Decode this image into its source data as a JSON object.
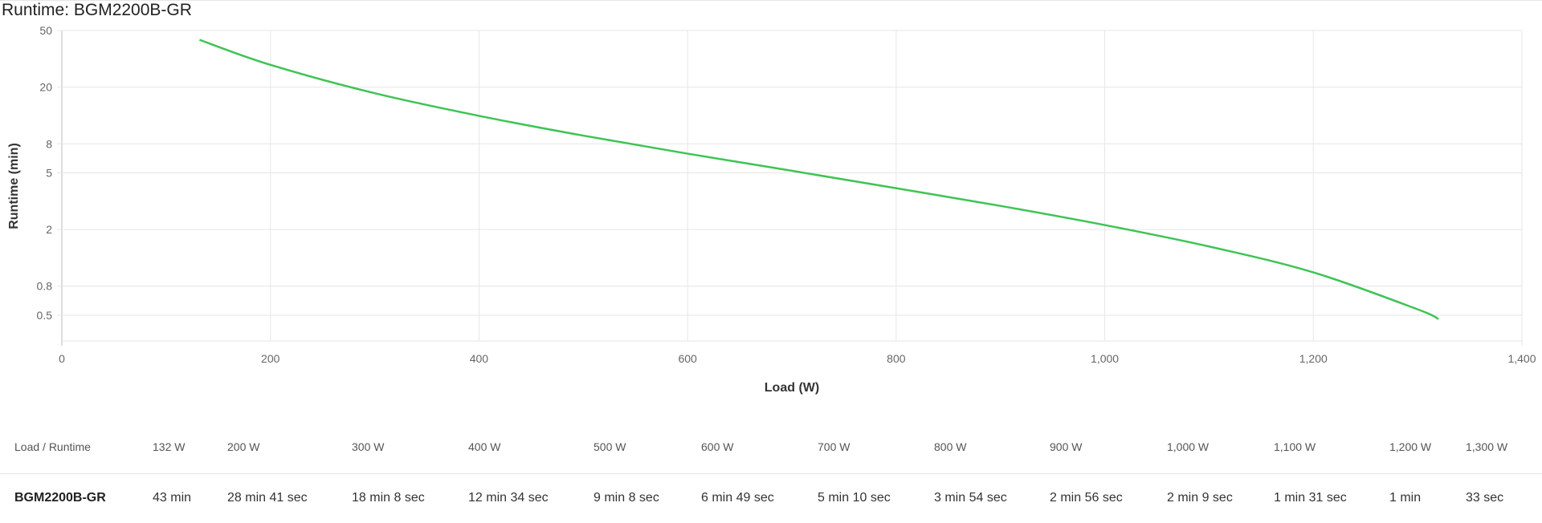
{
  "chart_data": {
    "type": "line",
    "title": "Runtime: BGM2200B-GR",
    "xlabel": "Load (W)",
    "ylabel": "Runtime (min)",
    "xlim": [
      0,
      1400
    ],
    "ylim": [
      0.33,
      50
    ],
    "yscale": "log",
    "grid": true,
    "x_ticks": [
      0,
      200,
      400,
      600,
      800,
      1000,
      1200,
      1400
    ],
    "x_tick_labels": [
      "0",
      "200",
      "400",
      "600",
      "800",
      "1,000",
      "1,200",
      "1,400"
    ],
    "y_ticks": [
      50,
      20,
      8,
      5,
      2,
      0.8,
      0.5
    ],
    "y_tick_labels": [
      "50",
      "20",
      "8",
      "5",
      "2",
      "0.8",
      "0.5"
    ],
    "series": [
      {
        "name": "BGM2200B-GR",
        "color": "#3ec455",
        "x": [
          132,
          200,
          300,
          400,
          500,
          600,
          700,
          800,
          900,
          1000,
          1100,
          1200,
          1300,
          1320
        ],
        "y": [
          43,
          28.68,
          18.13,
          12.57,
          9.13,
          6.82,
          5.17,
          3.9,
          2.93,
          2.15,
          1.52,
          1.0,
          0.55,
          0.47
        ]
      }
    ]
  },
  "table": {
    "header_label": "Load / Runtime",
    "loads": [
      "132 W",
      "200 W",
      "300 W",
      "400 W",
      "500 W",
      "600 W",
      "700 W",
      "800 W",
      "900 W",
      "1,000 W",
      "1,100 W",
      "1,200 W",
      "1,300 W"
    ],
    "model": "BGM2200B-GR",
    "runtimes": [
      "43 min",
      "28 min 41 sec",
      "18 min 8 sec",
      "12 min 34 sec",
      "9 min 8 sec",
      "6 min 49 sec",
      "5 min 10 sec",
      "3 min 54 sec",
      "2 min 56 sec",
      "2 min 9 sec",
      "1 min 31 sec",
      "1 min",
      "33 sec"
    ]
  }
}
